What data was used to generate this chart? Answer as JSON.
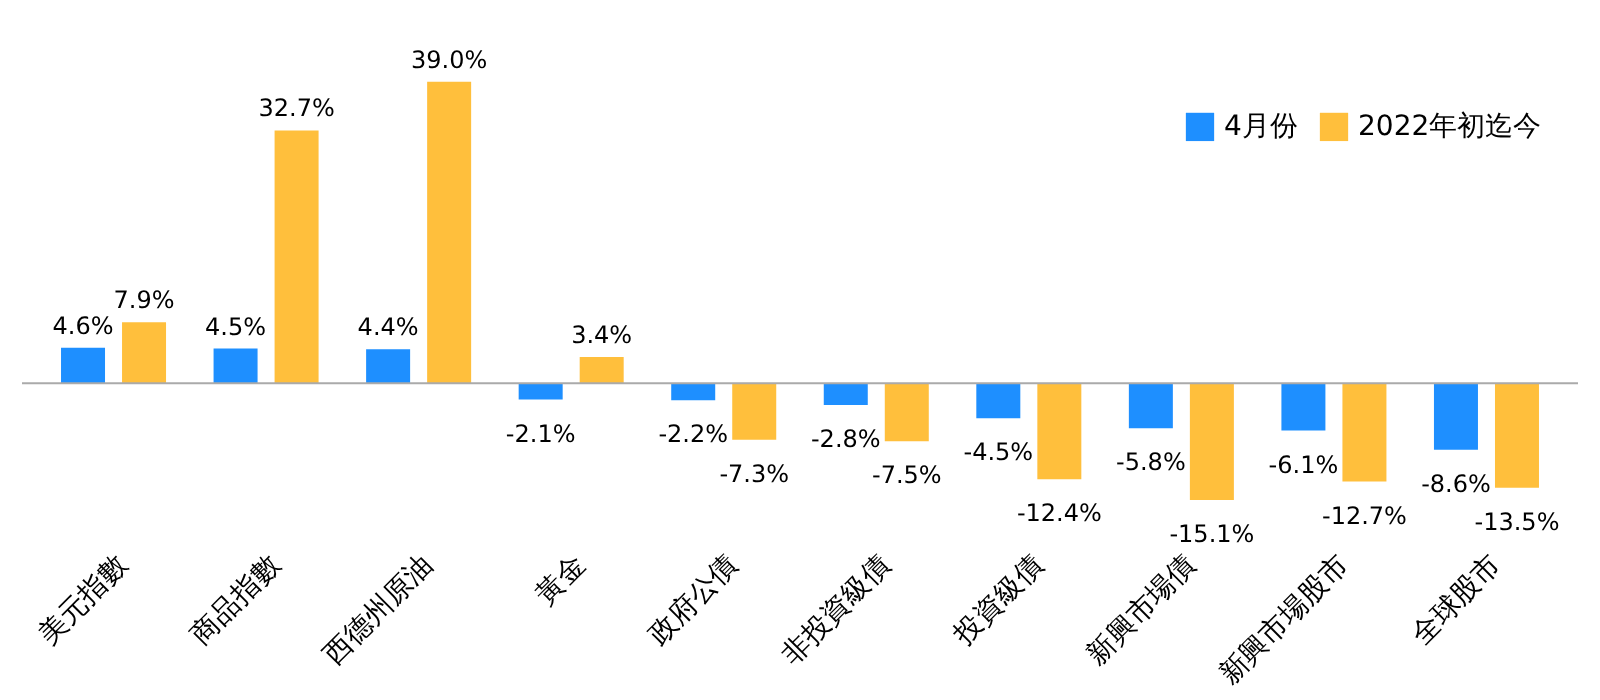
{
  "chart_data": {
    "type": "bar",
    "categories": [
      "美元指數",
      "商品指數",
      "西德州原油",
      "黃金",
      "政府公債",
      "非投資級債",
      "投資級債",
      "新興市場債",
      "新興市場股市",
      "全球股市"
    ],
    "series": [
      {
        "name": "4月份",
        "color": "#1e8fff",
        "values": [
          4.6,
          4.5,
          4.4,
          -2.1,
          -2.2,
          -2.8,
          -4.5,
          -5.8,
          -6.1,
          -8.6
        ],
        "value_labels": [
          "4.6%",
          "4.5%",
          "4.4%",
          "-2.1%",
          "-2.2%",
          "-2.8%",
          "-4.5%",
          "-5.8%",
          "-6.1%",
          "-8.6%"
        ]
      },
      {
        "name": "2022年初迄今",
        "color": "#ffbf3c",
        "values": [
          7.9,
          32.7,
          39.0,
          3.4,
          -7.3,
          -7.5,
          -12.4,
          -15.1,
          -12.7,
          -13.5
        ],
        "value_labels": [
          "7.9%",
          "32.7%",
          "39.0%",
          "3.4%",
          "-7.3%",
          "-7.5%",
          "-12.4%",
          "-15.1%",
          "-12.7%",
          "-13.5%"
        ]
      }
    ],
    "legend": "top right"
  }
}
